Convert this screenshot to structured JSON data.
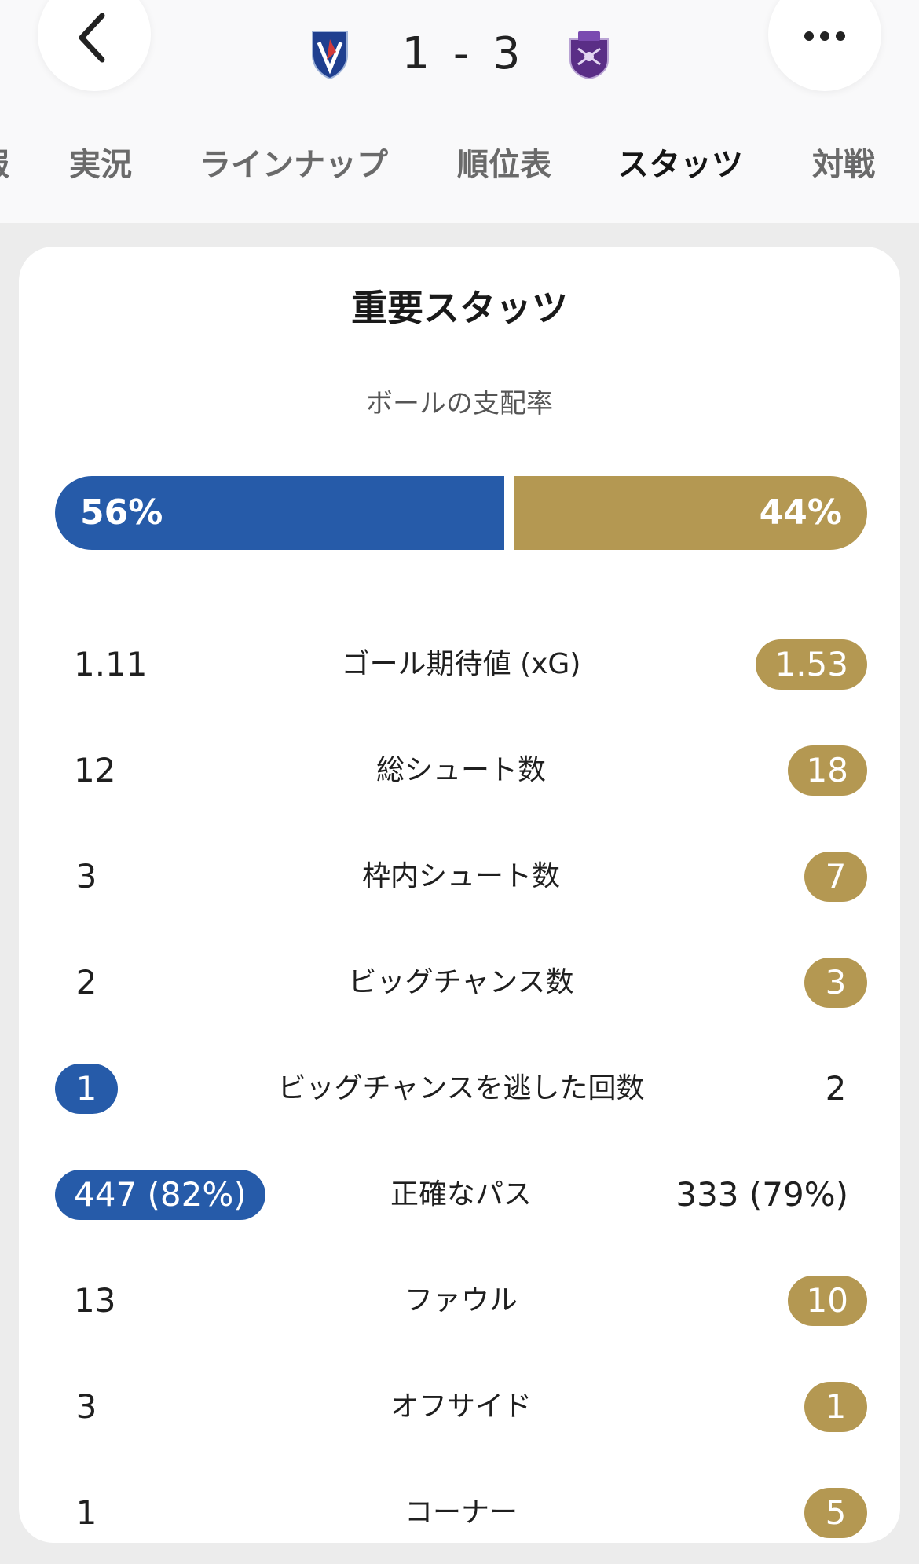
{
  "header": {
    "home_score": "1",
    "away_score": "3",
    "score_separator": "-"
  },
  "colors": {
    "home": "#265ba9",
    "away": "#b49852"
  },
  "tabs": [
    {
      "label": "報",
      "active": false
    },
    {
      "label": "実況",
      "active": false
    },
    {
      "label": "ラインナップ",
      "active": false
    },
    {
      "label": "順位表",
      "active": false
    },
    {
      "label": "スタッツ",
      "active": true
    },
    {
      "label": "対戦",
      "active": false
    }
  ],
  "card": {
    "title": "重要スタッツ",
    "possession": {
      "label": "ボールの支配率",
      "home": "56%",
      "away": "44%",
      "home_value": 56,
      "away_value": 44
    },
    "stats": [
      {
        "label": "ゴール期待値 (xG)",
        "home": "1.11",
        "away": "1.53",
        "highlight": "away"
      },
      {
        "label": "総シュート数",
        "home": "12",
        "away": "18",
        "highlight": "away"
      },
      {
        "label": "枠内シュート数",
        "home": "3",
        "away": "7",
        "highlight": "away"
      },
      {
        "label": "ビッグチャンス数",
        "home": "2",
        "away": "3",
        "highlight": "away"
      },
      {
        "label": "ビッグチャンスを逃した回数",
        "home": "1",
        "away": "2",
        "highlight": "home"
      },
      {
        "label": "正確なパス",
        "home": "447 (82%)",
        "away": "333 (79%)",
        "highlight": "home"
      },
      {
        "label": "ファウル",
        "home": "13",
        "away": "10",
        "highlight": "away"
      },
      {
        "label": "オフサイド",
        "home": "3",
        "away": "1",
        "highlight": "away"
      },
      {
        "label": "コーナー",
        "home": "1",
        "away": "5",
        "highlight": "away"
      }
    ]
  },
  "icons": {
    "back": "chevron-left-icon",
    "more": "more-horizontal-icon",
    "home_crest": "home-team-crest-icon",
    "away_crest": "away-team-crest-icon"
  }
}
